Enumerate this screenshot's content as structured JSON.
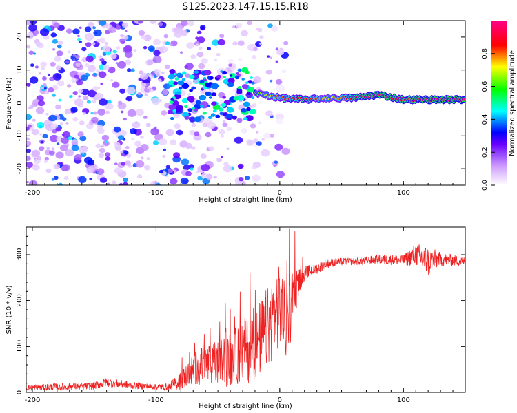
{
  "title": "S125.2023.147.15.15.R18",
  "chart_data": [
    {
      "type": "heatmap",
      "title": "S125.2023.147.15.15.R18",
      "xlabel": "Height of straight line (km)",
      "ylabel": "Frequency (Hz)",
      "xlim": [
        -205,
        150
      ],
      "ylim": [
        -25,
        25
      ],
      "xticks": [
        -200,
        -100,
        0,
        100
      ],
      "yticks": [
        -20,
        -10,
        0,
        10,
        20
      ],
      "colorbar": {
        "label": "Normalized spectral amplitude",
        "range": [
          0,
          1
        ],
        "ticks": [
          "0.0",
          "0.2",
          "0.4",
          "0.6",
          "0.8"
        ],
        "colors": [
          "#ffffff",
          "#6600ff",
          "#0000ff",
          "#00ffff",
          "#00ff00",
          "#ffff00",
          "#ff0000",
          "#ff0088"
        ]
      },
      "signal_band": {
        "description": "narrow high-amplitude band near 1-2 Hz from about -20 km to 150 km",
        "x": [
          -20,
          0,
          20,
          40,
          60,
          80,
          100,
          120,
          150
        ],
        "frequency": [
          3,
          1.5,
          1,
          1.5,
          1.5,
          2.5,
          1,
          1,
          1
        ],
        "amplitude": [
          0.6,
          0.8,
          0.9,
          0.7,
          0.9,
          1.0,
          0.95,
          1.0,
          1.0
        ]
      },
      "noise_region": {
        "x_range": [
          -205,
          -20
        ],
        "frequency_range": [
          -25,
          25
        ],
        "amplitude_range": [
          0.05,
          0.45
        ]
      }
    },
    {
      "type": "line",
      "xlabel": "Height of straight line (km)",
      "ylabel": "SNR (10 * v/v)",
      "xlim": [
        -205,
        150
      ],
      "ylim": [
        0,
        360
      ],
      "xticks": [
        -200,
        -100,
        0,
        100
      ],
      "yticks": [
        0,
        100,
        200,
        300
      ],
      "series": [
        {
          "name": "SNR",
          "color": "#ee2222",
          "x": [
            -205,
            -180,
            -150,
            -140,
            -120,
            -100,
            -90,
            -80,
            -70,
            -60,
            -50,
            -40,
            -30,
            -20,
            -10,
            0,
            5,
            10,
            15,
            20,
            30,
            40,
            50,
            60,
            80,
            100,
            110,
            120,
            130,
            150
          ],
          "y": [
            10,
            12,
            14,
            22,
            15,
            12,
            12,
            25,
            50,
            60,
            65,
            70,
            90,
            100,
            140,
            190,
            150,
            200,
            240,
            260,
            270,
            282,
            285,
            285,
            290,
            288,
            300,
            285,
            290,
            285
          ],
          "spread": [
            6,
            8,
            8,
            10,
            8,
            6,
            8,
            20,
            35,
            45,
            50,
            60,
            70,
            80,
            90,
            90,
            80,
            80,
            30,
            15,
            12,
            10,
            8,
            8,
            10,
            12,
            25,
            35,
            15,
            10
          ]
        }
      ]
    }
  ]
}
